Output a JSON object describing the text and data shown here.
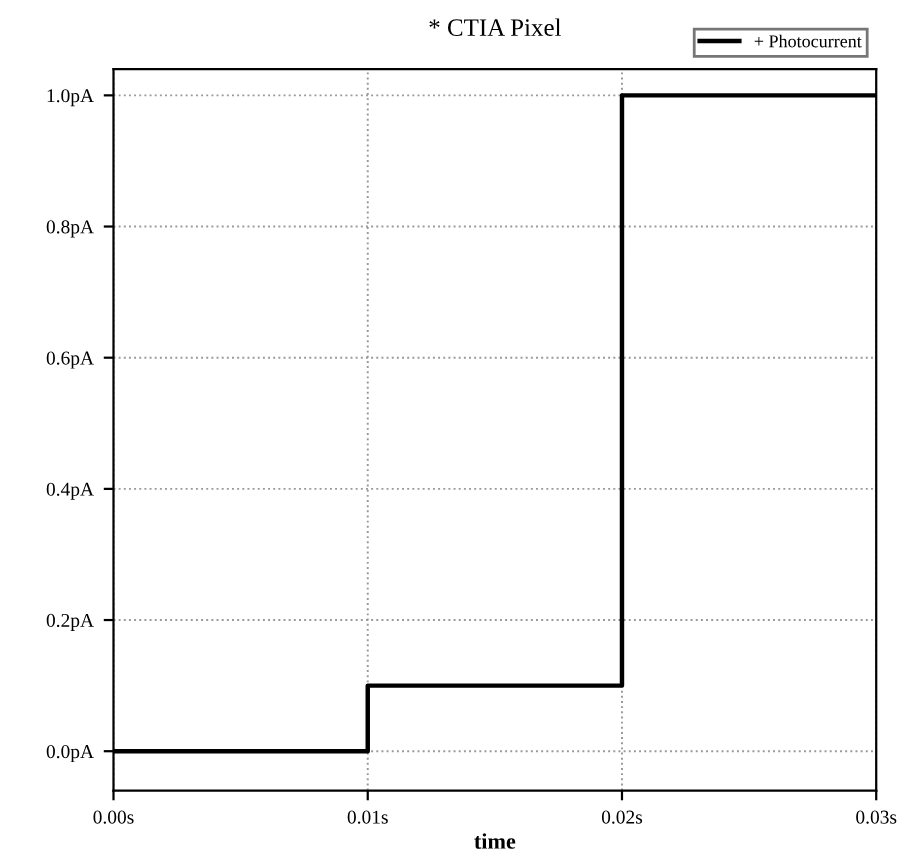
{
  "chart_data": {
    "type": "step",
    "title": "* CTIA Pixel",
    "xlabel": "time",
    "x": [
      0,
      0.01,
      0.02,
      0.03
    ],
    "series": [
      {
        "name": "+ Photocurrent",
        "color": "#000000",
        "values": [
          0,
          0.1,
          1.0,
          1.0
        ]
      }
    ],
    "xlim": [
      0,
      0.03
    ],
    "ylim": [
      -0.06,
      1.04
    ],
    "xticks": [
      {
        "value": 0,
        "label": "0.00s"
      },
      {
        "value": 0.01,
        "label": "0.01s"
      },
      {
        "value": 0.02,
        "label": "0.02s"
      },
      {
        "value": 0.03,
        "label": "0.03s"
      }
    ],
    "yticks": [
      {
        "value": 0,
        "label": "0.0pA"
      },
      {
        "value": 0.2,
        "label": "0.2pA"
      },
      {
        "value": 0.4,
        "label": "0.4pA"
      },
      {
        "value": 0.6,
        "label": "0.6pA"
      },
      {
        "value": 0.8,
        "label": "0.8pA"
      },
      {
        "value": 1.0,
        "label": "1.0pA"
      }
    ],
    "grid": true,
    "legend": "top right",
    "line_style": "solid"
  }
}
